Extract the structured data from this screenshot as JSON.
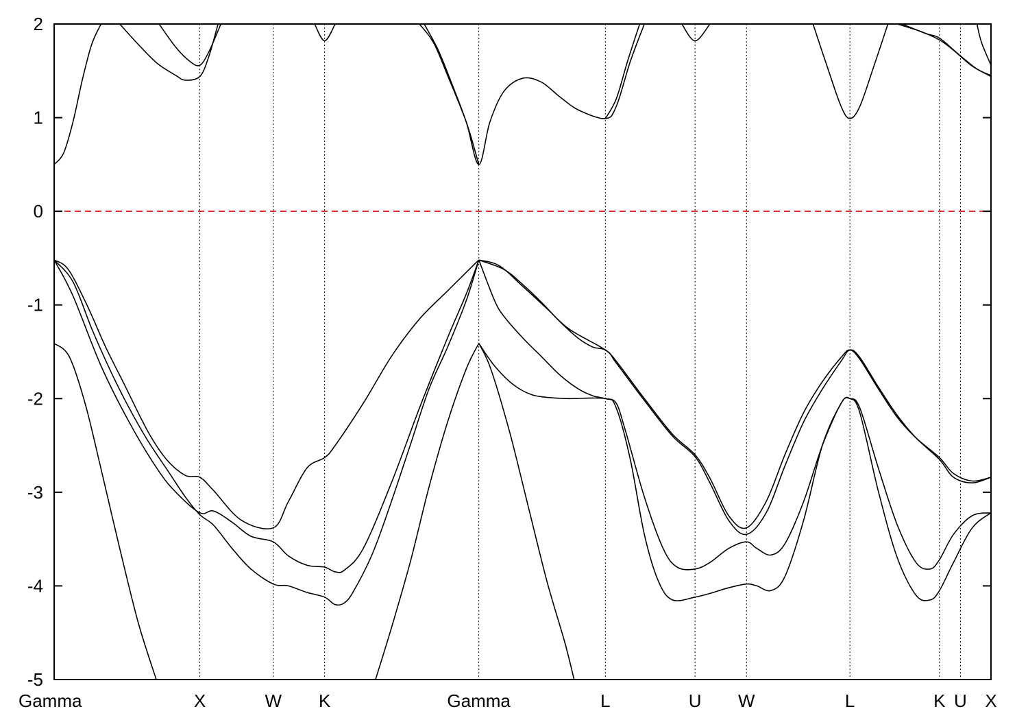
{
  "chart_data": {
    "type": "line",
    "title": "",
    "xlabel": "",
    "ylabel": "",
    "ylim": [
      -5,
      2
    ],
    "yticks": [
      2,
      1,
      0,
      -1,
      -2,
      -3,
      -4,
      -5
    ],
    "xlim": [
      0,
      1
    ],
    "high_symmetry_points": [
      {
        "label": "Gamma",
        "x": 0.0
      },
      {
        "label": "X",
        "x": 0.1555
      },
      {
        "label": "W",
        "x": 0.2339
      },
      {
        "label": "K",
        "x": 0.2887
      },
      {
        "label": "Gamma",
        "x": 0.4533
      },
      {
        "label": "L",
        "x": 0.5884
      },
      {
        "label": "U",
        "x": 0.6841
      },
      {
        "label": "W",
        "x": 0.739
      },
      {
        "label": "L",
        "x": 0.8494
      },
      {
        "label": "K",
        "x": 0.945
      },
      {
        "label": "U",
        "x": 0.9674
      },
      {
        "label": "X",
        "x": 1.0
      }
    ],
    "fermi_level": {
      "y": 0,
      "color": "#dd0000",
      "style": "dashed"
    },
    "line_color": "#000000",
    "grid": "vertical dotted lines at high-symmetry points",
    "series": [
      {
        "values": [
          [
            0,
            -1.41
          ],
          [
            0.016,
            -1.55
          ],
          [
            0.033,
            -2.05
          ],
          [
            0.05,
            -2.75
          ],
          [
            0.07,
            -3.6
          ],
          [
            0.09,
            -4.4
          ],
          [
            0.109,
            -5.0
          ]
        ]
      },
      {
        "values": [
          [
            0.343,
            -5.0
          ],
          [
            0.36,
            -4.45
          ],
          [
            0.38,
            -3.75
          ],
          [
            0.4,
            -2.95
          ],
          [
            0.42,
            -2.25
          ],
          [
            0.44,
            -1.68
          ],
          [
            0.4533,
            -1.41
          ]
        ]
      },
      {
        "values": [
          [
            0.4533,
            -1.41
          ],
          [
            0.466,
            -1.68
          ],
          [
            0.486,
            -2.35
          ],
          [
            0.506,
            -3.15
          ],
          [
            0.526,
            -3.95
          ],
          [
            0.545,
            -4.6
          ],
          [
            0.555,
            -5.0
          ]
        ]
      },
      {
        "values": [
          [
            0,
            -0.52
          ],
          [
            0.02,
            -0.75
          ],
          [
            0.04,
            -1.25
          ],
          [
            0.06,
            -1.7
          ],
          [
            0.08,
            -2.1
          ],
          [
            0.1,
            -2.45
          ],
          [
            0.12,
            -2.75
          ],
          [
            0.14,
            -3.05
          ],
          [
            0.1555,
            -3.24
          ],
          [
            0.17,
            -3.35
          ],
          [
            0.19,
            -3.6
          ],
          [
            0.21,
            -3.82
          ],
          [
            0.2339,
            -3.98
          ],
          [
            0.25,
            -4.0
          ],
          [
            0.27,
            -4.07
          ],
          [
            0.2887,
            -4.12
          ],
          [
            0.3,
            -4.2
          ],
          [
            0.31,
            -4.18
          ],
          [
            0.32,
            -4.05
          ],
          [
            0.34,
            -3.65
          ],
          [
            0.36,
            -3.1
          ],
          [
            0.38,
            -2.5
          ],
          [
            0.4,
            -1.9
          ],
          [
            0.42,
            -1.45
          ],
          [
            0.44,
            -0.95
          ],
          [
            0.4533,
            -0.52
          ]
        ]
      },
      {
        "values": [
          [
            0,
            -0.52
          ],
          [
            0.015,
            -0.62
          ],
          [
            0.035,
            -1.0
          ],
          [
            0.055,
            -1.45
          ],
          [
            0.075,
            -1.85
          ],
          [
            0.1,
            -2.35
          ],
          [
            0.12,
            -2.65
          ],
          [
            0.14,
            -2.82
          ],
          [
            0.1555,
            -2.84
          ],
          [
            0.17,
            -2.98
          ],
          [
            0.2,
            -3.3
          ],
          [
            0.2339,
            -3.38
          ],
          [
            0.25,
            -3.1
          ],
          [
            0.27,
            -2.74
          ],
          [
            0.2887,
            -2.63
          ],
          [
            0.3,
            -2.5
          ],
          [
            0.33,
            -2.05
          ],
          [
            0.36,
            -1.55
          ],
          [
            0.39,
            -1.15
          ],
          [
            0.42,
            -0.85
          ],
          [
            0.44,
            -0.65
          ],
          [
            0.4533,
            -0.52
          ]
        ]
      },
      {
        "values": [
          [
            0,
            -0.52
          ],
          [
            0.02,
            -0.9
          ],
          [
            0.05,
            -1.65
          ],
          [
            0.08,
            -2.25
          ],
          [
            0.11,
            -2.75
          ],
          [
            0.13,
            -3.0
          ],
          [
            0.1555,
            -3.22
          ],
          [
            0.17,
            -3.2
          ],
          [
            0.19,
            -3.32
          ],
          [
            0.21,
            -3.47
          ],
          [
            0.2339,
            -3.53
          ],
          [
            0.25,
            -3.68
          ],
          [
            0.27,
            -3.78
          ],
          [
            0.2887,
            -3.8
          ],
          [
            0.3,
            -3.85
          ],
          [
            0.31,
            -3.83
          ],
          [
            0.33,
            -3.6
          ],
          [
            0.36,
            -2.9
          ],
          [
            0.39,
            -2.1
          ],
          [
            0.42,
            -1.35
          ],
          [
            0.44,
            -0.88
          ],
          [
            0.4533,
            -0.52
          ]
        ]
      },
      {
        "values": [
          [
            0.4533,
            -0.52
          ],
          [
            0.47,
            -0.95
          ],
          [
            0.48,
            -1.12
          ],
          [
            0.5,
            -1.35
          ],
          [
            0.52,
            -1.55
          ],
          [
            0.54,
            -1.75
          ],
          [
            0.56,
            -1.9
          ],
          [
            0.575,
            -1.97
          ],
          [
            0.5884,
            -2.0
          ],
          [
            0.6,
            -2.05
          ],
          [
            0.61,
            -2.35
          ],
          [
            0.63,
            -3.05
          ],
          [
            0.65,
            -3.6
          ],
          [
            0.665,
            -3.8
          ],
          [
            0.6841,
            -3.82
          ],
          [
            0.7,
            -3.75
          ],
          [
            0.72,
            -3.6
          ],
          [
            0.739,
            -3.53
          ],
          [
            0.75,
            -3.6
          ],
          [
            0.765,
            -3.67
          ],
          [
            0.78,
            -3.55
          ],
          [
            0.8,
            -3.1
          ],
          [
            0.82,
            -2.5
          ],
          [
            0.84,
            -2.05
          ],
          [
            0.8494,
            -2.0
          ],
          [
            0.86,
            -2.1
          ],
          [
            0.88,
            -2.75
          ],
          [
            0.9,
            -3.35
          ],
          [
            0.92,
            -3.75
          ],
          [
            0.935,
            -3.82
          ],
          [
            0.945,
            -3.72
          ],
          [
            0.96,
            -3.45
          ],
          [
            0.98,
            -3.25
          ],
          [
            1.0,
            -3.22
          ]
        ]
      },
      {
        "values": [
          [
            0.4533,
            -0.52
          ],
          [
            0.48,
            -0.62
          ],
          [
            0.5,
            -0.78
          ],
          [
            0.52,
            -0.97
          ],
          [
            0.54,
            -1.18
          ],
          [
            0.56,
            -1.36
          ],
          [
            0.575,
            -1.45
          ],
          [
            0.5884,
            -1.48
          ],
          [
            0.6,
            -1.6
          ],
          [
            0.63,
            -2.0
          ],
          [
            0.66,
            -2.38
          ],
          [
            0.6841,
            -2.6
          ],
          [
            0.7,
            -2.85
          ],
          [
            0.72,
            -3.25
          ],
          [
            0.739,
            -3.38
          ],
          [
            0.76,
            -3.1
          ],
          [
            0.78,
            -2.6
          ],
          [
            0.8,
            -2.15
          ],
          [
            0.82,
            -1.82
          ],
          [
            0.84,
            -1.56
          ],
          [
            0.8494,
            -1.48
          ],
          [
            0.86,
            -1.58
          ],
          [
            0.88,
            -1.9
          ],
          [
            0.9,
            -2.2
          ],
          [
            0.92,
            -2.42
          ],
          [
            0.945,
            -2.63
          ],
          [
            0.96,
            -2.8
          ],
          [
            0.98,
            -2.88
          ],
          [
            1.0,
            -2.84
          ]
        ]
      },
      {
        "values": [
          [
            0.4533,
            -0.52
          ],
          [
            0.475,
            -0.58
          ],
          [
            0.5,
            -0.8
          ],
          [
            0.525,
            -1.03
          ],
          [
            0.55,
            -1.26
          ],
          [
            0.5884,
            -1.48
          ],
          [
            0.6,
            -1.62
          ],
          [
            0.63,
            -2.02
          ],
          [
            0.66,
            -2.4
          ],
          [
            0.6841,
            -2.62
          ],
          [
            0.7,
            -2.9
          ],
          [
            0.72,
            -3.3
          ],
          [
            0.739,
            -3.45
          ],
          [
            0.76,
            -3.22
          ],
          [
            0.78,
            -2.72
          ],
          [
            0.8,
            -2.25
          ],
          [
            0.82,
            -1.9
          ],
          [
            0.84,
            -1.6
          ],
          [
            0.8494,
            -1.48
          ],
          [
            0.86,
            -1.56
          ],
          [
            0.88,
            -1.88
          ],
          [
            0.9,
            -2.18
          ],
          [
            0.92,
            -2.42
          ],
          [
            0.945,
            -2.65
          ],
          [
            0.96,
            -2.84
          ],
          [
            0.98,
            -2.9
          ],
          [
            1.0,
            -2.84
          ]
        ]
      },
      {
        "values": [
          [
            0.4533,
            -1.41
          ],
          [
            0.47,
            -1.65
          ],
          [
            0.49,
            -1.85
          ],
          [
            0.51,
            -1.96
          ],
          [
            0.53,
            -1.99
          ],
          [
            0.55,
            -2.0
          ],
          [
            0.5884,
            -2.0
          ],
          [
            0.6,
            -2.1
          ],
          [
            0.615,
            -2.65
          ],
          [
            0.63,
            -3.45
          ],
          [
            0.645,
            -3.95
          ],
          [
            0.66,
            -4.15
          ],
          [
            0.6841,
            -4.12
          ],
          [
            0.7,
            -4.08
          ],
          [
            0.72,
            -4.02
          ],
          [
            0.739,
            -3.98
          ],
          [
            0.75,
            -4.0
          ],
          [
            0.765,
            -4.05
          ],
          [
            0.78,
            -3.9
          ],
          [
            0.8,
            -3.3
          ],
          [
            0.82,
            -2.5
          ],
          [
            0.84,
            -2.05
          ],
          [
            0.8494,
            -2.0
          ],
          [
            0.86,
            -2.15
          ],
          [
            0.88,
            -3.0
          ],
          [
            0.9,
            -3.7
          ],
          [
            0.92,
            -4.1
          ],
          [
            0.935,
            -4.15
          ],
          [
            0.945,
            -4.05
          ],
          [
            0.96,
            -3.75
          ],
          [
            0.98,
            -3.38
          ],
          [
            1.0,
            -3.22
          ]
        ]
      },
      {
        "values": [
          [
            0,
            0.5
          ],
          [
            0.01,
            0.62
          ],
          [
            0.02,
            0.95
          ],
          [
            0.03,
            1.4
          ],
          [
            0.04,
            1.78
          ],
          [
            0.05,
            2.0
          ]
        ]
      },
      {
        "values": [
          [
            0.07,
            2.0
          ],
          [
            0.09,
            1.78
          ],
          [
            0.11,
            1.58
          ],
          [
            0.13,
            1.45
          ],
          [
            0.14,
            1.4
          ],
          [
            0.1555,
            1.44
          ],
          [
            0.165,
            1.65
          ],
          [
            0.175,
            2.0
          ]
        ]
      },
      {
        "values": [
          [
            0.112,
            2.0
          ],
          [
            0.13,
            1.75
          ],
          [
            0.145,
            1.6
          ],
          [
            0.1555,
            1.56
          ],
          [
            0.165,
            1.7
          ],
          [
            0.178,
            2.0
          ]
        ]
      },
      {
        "values": [
          [
            0.278,
            2.0
          ],
          [
            0.2887,
            1.82
          ],
          [
            0.3,
            2.0
          ]
        ]
      },
      {
        "values": [
          [
            0.395,
            2.0
          ],
          [
            0.41,
            1.72
          ],
          [
            0.425,
            1.35
          ],
          [
            0.44,
            0.95
          ],
          [
            0.4533,
            0.5
          ],
          [
            0.465,
            0.95
          ],
          [
            0.48,
            1.28
          ],
          [
            0.5,
            1.42
          ],
          [
            0.52,
            1.38
          ],
          [
            0.54,
            1.22
          ],
          [
            0.56,
            1.08
          ],
          [
            0.5884,
            0.99
          ],
          [
            0.6,
            1.12
          ],
          [
            0.615,
            1.6
          ],
          [
            0.63,
            2.0
          ]
        ]
      },
      {
        "values": [
          [
            0.39,
            2.0
          ],
          [
            0.405,
            1.8
          ],
          [
            0.42,
            1.45
          ],
          [
            0.44,
            0.95
          ],
          [
            0.4533,
            0.5
          ]
        ]
      },
      {
        "values": [
          [
            0.5884,
            0.99
          ],
          [
            0.6,
            1.2
          ],
          [
            0.612,
            1.6
          ],
          [
            0.625,
            2.0
          ]
        ]
      },
      {
        "values": [
          [
            0.67,
            2.0
          ],
          [
            0.6841,
            1.82
          ],
          [
            0.7,
            2.0
          ]
        ]
      },
      {
        "values": [
          [
            0.81,
            2.0
          ],
          [
            0.825,
            1.55
          ],
          [
            0.84,
            1.12
          ],
          [
            0.8494,
            0.99
          ],
          [
            0.86,
            1.12
          ],
          [
            0.875,
            1.55
          ],
          [
            0.89,
            2.0
          ]
        ]
      },
      {
        "values": [
          [
            0.9,
            2.0
          ],
          [
            0.925,
            1.92
          ],
          [
            0.945,
            1.83
          ],
          [
            0.96,
            1.72
          ],
          [
            0.98,
            1.55
          ],
          [
            1.0,
            1.44
          ]
        ]
      },
      {
        "values": [
          [
            0.905,
            2.0
          ],
          [
            0.93,
            1.9
          ],
          [
            0.945,
            1.85
          ],
          [
            0.965,
            1.68
          ],
          [
            0.985,
            1.52
          ],
          [
            1.0,
            1.45
          ]
        ]
      },
      {
        "values": [
          [
            0.985,
            2.0
          ],
          [
            0.99,
            1.8
          ],
          [
            1.0,
            1.56
          ]
        ]
      }
    ]
  }
}
